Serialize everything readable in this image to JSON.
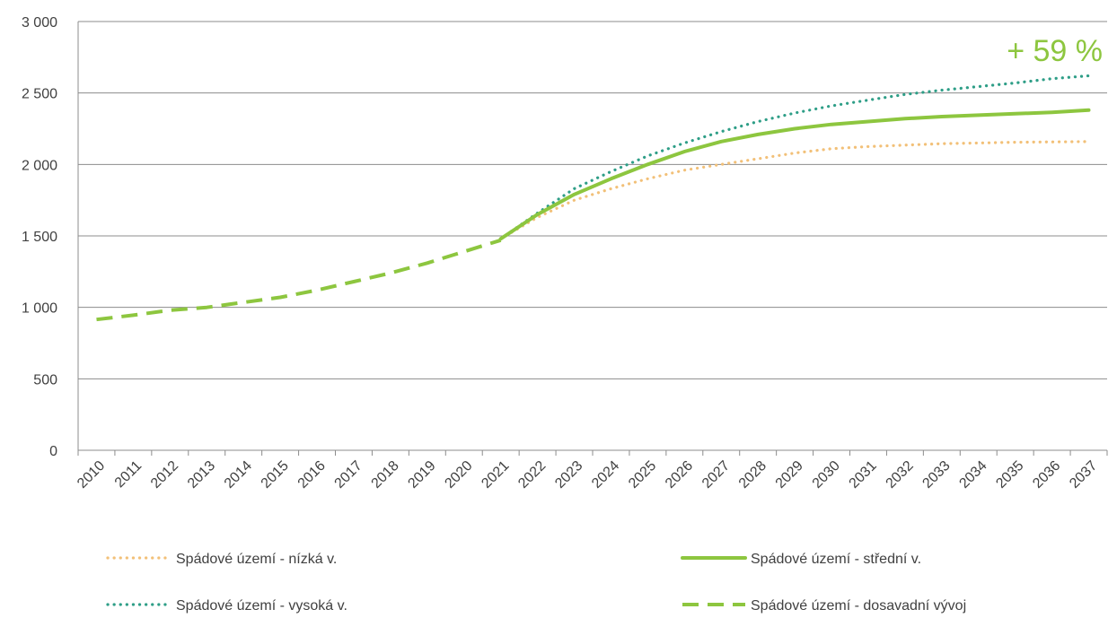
{
  "chart_data": {
    "type": "line",
    "title": "",
    "xlabel": "",
    "ylabel": "",
    "ylim": [
      0,
      3000
    ],
    "y_ticks": [
      0,
      500,
      1000,
      1500,
      2000,
      2500,
      3000
    ],
    "y_tick_labels": [
      "0",
      "500",
      "1 000",
      "1 500",
      "2 000",
      "2 500",
      "3 000"
    ],
    "x": [
      "2010",
      "2011",
      "2012",
      "2013",
      "2014",
      "2015",
      "2016",
      "2017",
      "2018",
      "2019",
      "2020",
      "2021",
      "2022",
      "2023",
      "2024",
      "2025",
      "2026",
      "2027",
      "2028",
      "2029",
      "2030",
      "2031",
      "2032",
      "2033",
      "2034",
      "2035",
      "2036",
      "2037"
    ],
    "grid": "horizontal",
    "legend": "bottom",
    "annotation": {
      "text": "+ 59 %",
      "color": "#8dc63f"
    },
    "series": [
      {
        "name": "Spádové území - nízká v.",
        "style": "dotted",
        "color": "#f2c078",
        "values": [
          null,
          null,
          null,
          null,
          null,
          null,
          null,
          null,
          null,
          null,
          null,
          1480,
          1630,
          1750,
          1830,
          1900,
          1960,
          2000,
          2040,
          2080,
          2110,
          2125,
          2135,
          2145,
          2150,
          2155,
          2158,
          2160
        ]
      },
      {
        "name": "Spádové území - střední v.",
        "style": "solid",
        "color": "#8dc63f",
        "values": [
          null,
          null,
          null,
          null,
          null,
          null,
          null,
          null,
          null,
          null,
          null,
          1480,
          1650,
          1790,
          1900,
          2000,
          2090,
          2160,
          2210,
          2250,
          2280,
          2300,
          2320,
          2335,
          2345,
          2355,
          2365,
          2380
        ]
      },
      {
        "name": "Spádové území - vysoká v.",
        "style": "dotted",
        "color": "#2e9e87",
        "values": [
          null,
          null,
          null,
          null,
          null,
          null,
          null,
          null,
          null,
          null,
          null,
          1480,
          1660,
          1830,
          1950,
          2060,
          2150,
          2230,
          2300,
          2360,
          2410,
          2450,
          2490,
          2520,
          2545,
          2570,
          2600,
          2620
        ]
      },
      {
        "name": "Spádové území - dosavadní vývoj",
        "style": "dashed",
        "color": "#8dc63f",
        "values": [
          915,
          945,
          980,
          1000,
          1035,
          1070,
          1120,
          1180,
          1240,
          1310,
          1390,
          1470,
          null,
          null,
          null,
          null,
          null,
          null,
          null,
          null,
          null,
          null,
          null,
          null,
          null,
          null,
          null,
          null
        ]
      }
    ]
  }
}
